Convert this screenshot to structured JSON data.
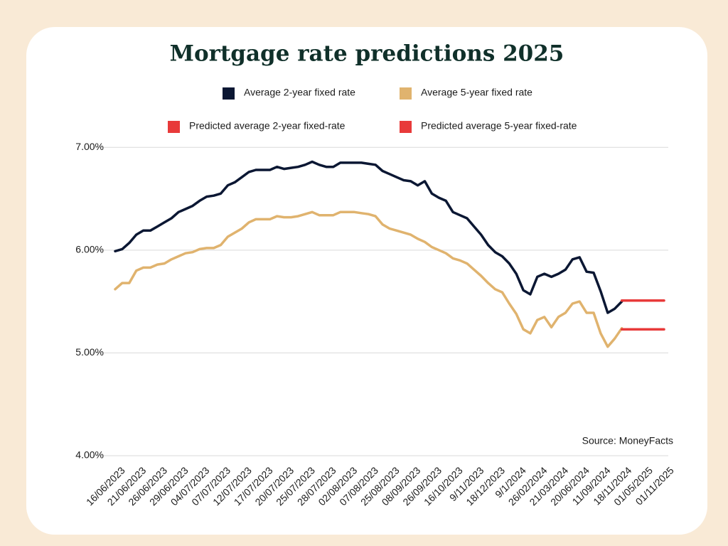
{
  "chart_data": {
    "type": "line",
    "title": "Mortgage rate predictions 2025",
    "source": "Source: MoneyFacts",
    "categories": [
      "16/06/2023",
      null,
      null,
      "21/06/2023",
      null,
      null,
      "26/06/2023",
      null,
      null,
      "29/06/2023",
      null,
      null,
      "04/07/2023",
      null,
      null,
      "07/07/2023",
      null,
      null,
      "12/07/2023",
      null,
      null,
      "17/07/2023",
      null,
      null,
      "20/07/2023",
      null,
      null,
      "25/07/2023",
      null,
      null,
      "28/07/2023",
      null,
      null,
      "02/08/2023",
      null,
      null,
      "07/08/2023",
      null,
      null,
      "25/08/2023",
      null,
      null,
      "08/09/2023",
      null,
      null,
      "26/09/2023",
      null,
      null,
      "16/10/2023",
      null,
      null,
      "9/11/2023",
      null,
      null,
      "18/12/2023",
      null,
      null,
      "9/1/2024",
      null,
      null,
      "26/02/2024",
      null,
      null,
      "21/03/2024",
      null,
      null,
      "20/06/2024",
      null,
      null,
      "11/09/2024",
      null,
      null,
      "18/11/2024",
      null,
      null,
      "01/05/2025",
      null,
      null,
      "01/11/2025"
    ],
    "series": [
      {
        "name": "Average 2-year fixed rate",
        "color": "#0b1733",
        "values": [
          5.99,
          6.01,
          6.07,
          6.15,
          6.19,
          6.19,
          6.23,
          6.27,
          6.31,
          6.37,
          6.4,
          6.43,
          6.48,
          6.52,
          6.53,
          6.55,
          6.63,
          6.66,
          6.71,
          6.76,
          6.78,
          6.78,
          6.78,
          6.81,
          6.79,
          6.8,
          6.81,
          6.83,
          6.86,
          6.83,
          6.81,
          6.81,
          6.85,
          6.85,
          6.85,
          6.85,
          6.84,
          6.83,
          6.77,
          6.74,
          6.71,
          6.68,
          6.67,
          6.63,
          6.67,
          6.55,
          6.51,
          6.48,
          6.37,
          6.34,
          6.31,
          6.23,
          6.15,
          6.05,
          5.98,
          5.94,
          5.87,
          5.77,
          5.61,
          5.57,
          5.74,
          5.77,
          5.74,
          5.77,
          5.81,
          5.91,
          5.93,
          5.79,
          5.78,
          5.6,
          5.39,
          5.43,
          5.5,
          null,
          null,
          null,
          null,
          null,
          null
        ]
      },
      {
        "name": "Average 5-year fixed rate",
        "color": "#e0b36e",
        "values": [
          5.62,
          5.68,
          5.68,
          5.8,
          5.83,
          5.83,
          5.86,
          5.87,
          5.91,
          5.94,
          5.97,
          5.98,
          6.01,
          6.02,
          6.02,
          6.05,
          6.13,
          6.17,
          6.21,
          6.27,
          6.3,
          6.3,
          6.3,
          6.33,
          6.32,
          6.32,
          6.33,
          6.35,
          6.37,
          6.34,
          6.34,
          6.34,
          6.37,
          6.37,
          6.37,
          6.36,
          6.35,
          6.33,
          6.25,
          6.21,
          6.19,
          6.17,
          6.15,
          6.11,
          6.08,
          6.03,
          6.0,
          5.97,
          5.92,
          5.9,
          5.87,
          5.81,
          5.75,
          5.68,
          5.62,
          5.59,
          5.48,
          5.38,
          5.23,
          5.19,
          5.32,
          5.35,
          5.25,
          5.35,
          5.39,
          5.48,
          5.5,
          5.39,
          5.39,
          5.19,
          5.06,
          5.14,
          5.24,
          null,
          null,
          null,
          null,
          null,
          null
        ]
      },
      {
        "name": "Predicted average 2-year fixed-rate",
        "color": "#e83a3a",
        "values": [
          null,
          null,
          null,
          null,
          null,
          null,
          null,
          null,
          null,
          null,
          null,
          null,
          null,
          null,
          null,
          null,
          null,
          null,
          null,
          null,
          null,
          null,
          null,
          null,
          null,
          null,
          null,
          null,
          null,
          null,
          null,
          null,
          null,
          null,
          null,
          null,
          null,
          null,
          null,
          null,
          null,
          null,
          null,
          null,
          null,
          null,
          null,
          null,
          null,
          null,
          null,
          null,
          null,
          null,
          null,
          null,
          null,
          null,
          null,
          null,
          null,
          null,
          null,
          null,
          null,
          null,
          null,
          null,
          null,
          null,
          null,
          null,
          5.51,
          5.51,
          5.51,
          5.51,
          5.51,
          5.51,
          5.51
        ]
      },
      {
        "name": "Predicted average 5-year fixed-rate",
        "color": "#e83a3a",
        "values": [
          null,
          null,
          null,
          null,
          null,
          null,
          null,
          null,
          null,
          null,
          null,
          null,
          null,
          null,
          null,
          null,
          null,
          null,
          null,
          null,
          null,
          null,
          null,
          null,
          null,
          null,
          null,
          null,
          null,
          null,
          null,
          null,
          null,
          null,
          null,
          null,
          null,
          null,
          null,
          null,
          null,
          null,
          null,
          null,
          null,
          null,
          null,
          null,
          null,
          null,
          null,
          null,
          null,
          null,
          null,
          null,
          null,
          null,
          null,
          null,
          null,
          null,
          null,
          null,
          null,
          null,
          null,
          null,
          null,
          null,
          null,
          null,
          5.23,
          5.23,
          5.23,
          5.23,
          5.23,
          5.23,
          5.23
        ]
      }
    ],
    "ylim": [
      4,
      7.05
    ],
    "yticks": [
      {
        "value": 4,
        "label": "4.00%"
      },
      {
        "value": 5,
        "label": "5.00%"
      },
      {
        "value": 6,
        "label": "6.00%"
      },
      {
        "value": 7,
        "label": "7.00%"
      }
    ],
    "grid": true
  }
}
